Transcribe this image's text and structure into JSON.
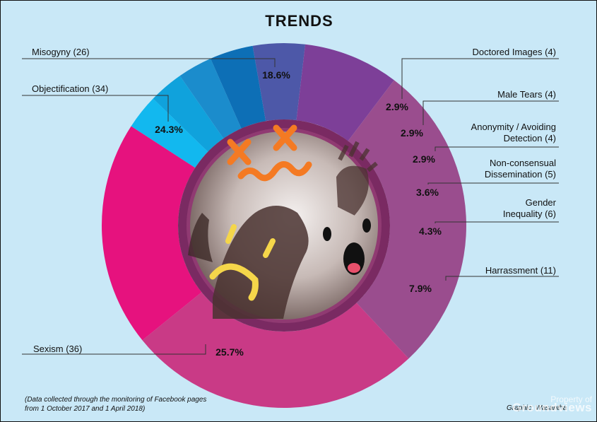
{
  "title": "TRENDS",
  "footnote": {
    "line1": "(Data collected through the monitoring of Facebook pages",
    "line2": "from 1 October 2017 and 1 April 2018)"
  },
  "credit": "Graphic: Wasantha",
  "watermark": {
    "line1": "Property of",
    "line2": "Groundviews"
  },
  "colors": {
    "background": "#c9e8f7",
    "inner_ring": "#7a2a62"
  },
  "chart_data": {
    "type": "pie",
    "variant": "donut",
    "title": "TRENDS",
    "slices": [
      {
        "label": "Misogyny (26)",
        "count": 26,
        "percent": "18.6%",
        "color": "#e6127e"
      },
      {
        "label": "Doctored Images (4)",
        "count": 4,
        "percent": "2.9%",
        "color": "#12b8ef"
      },
      {
        "label": "Male Tears (4)",
        "count": 4,
        "percent": "2.9%",
        "color": "#10a2dc"
      },
      {
        "label": "Anonymity / Avoiding Detection (4)",
        "lines": [
          "Anonymity / Avoiding",
          "Detection (4)"
        ],
        "count": 4,
        "percent": "2.9%",
        "color": "#1b8ccc"
      },
      {
        "label": "Non-consensual Dissemination (5)",
        "lines": [
          "Non-consensual",
          "Dissemination (5)"
        ],
        "count": 5,
        "percent": "3.6%",
        "color": "#0d6fb6"
      },
      {
        "label": "Gender Inequality (6)",
        "lines": [
          "Gender",
          "Inequality (6)"
        ],
        "count": 6,
        "percent": "4.3%",
        "color": "#4d58a8"
      },
      {
        "label": "Harrassment (11)",
        "count": 11,
        "percent": "7.9%",
        "color": "#7d3f98"
      },
      {
        "label": "Sexism (36)",
        "count": 36,
        "percent": "25.7%",
        "color": "#9a4d8e"
      },
      {
        "label": "Objectification (34)",
        "count": 34,
        "percent": "24.3%",
        "color": "#c93a86"
      }
    ]
  }
}
